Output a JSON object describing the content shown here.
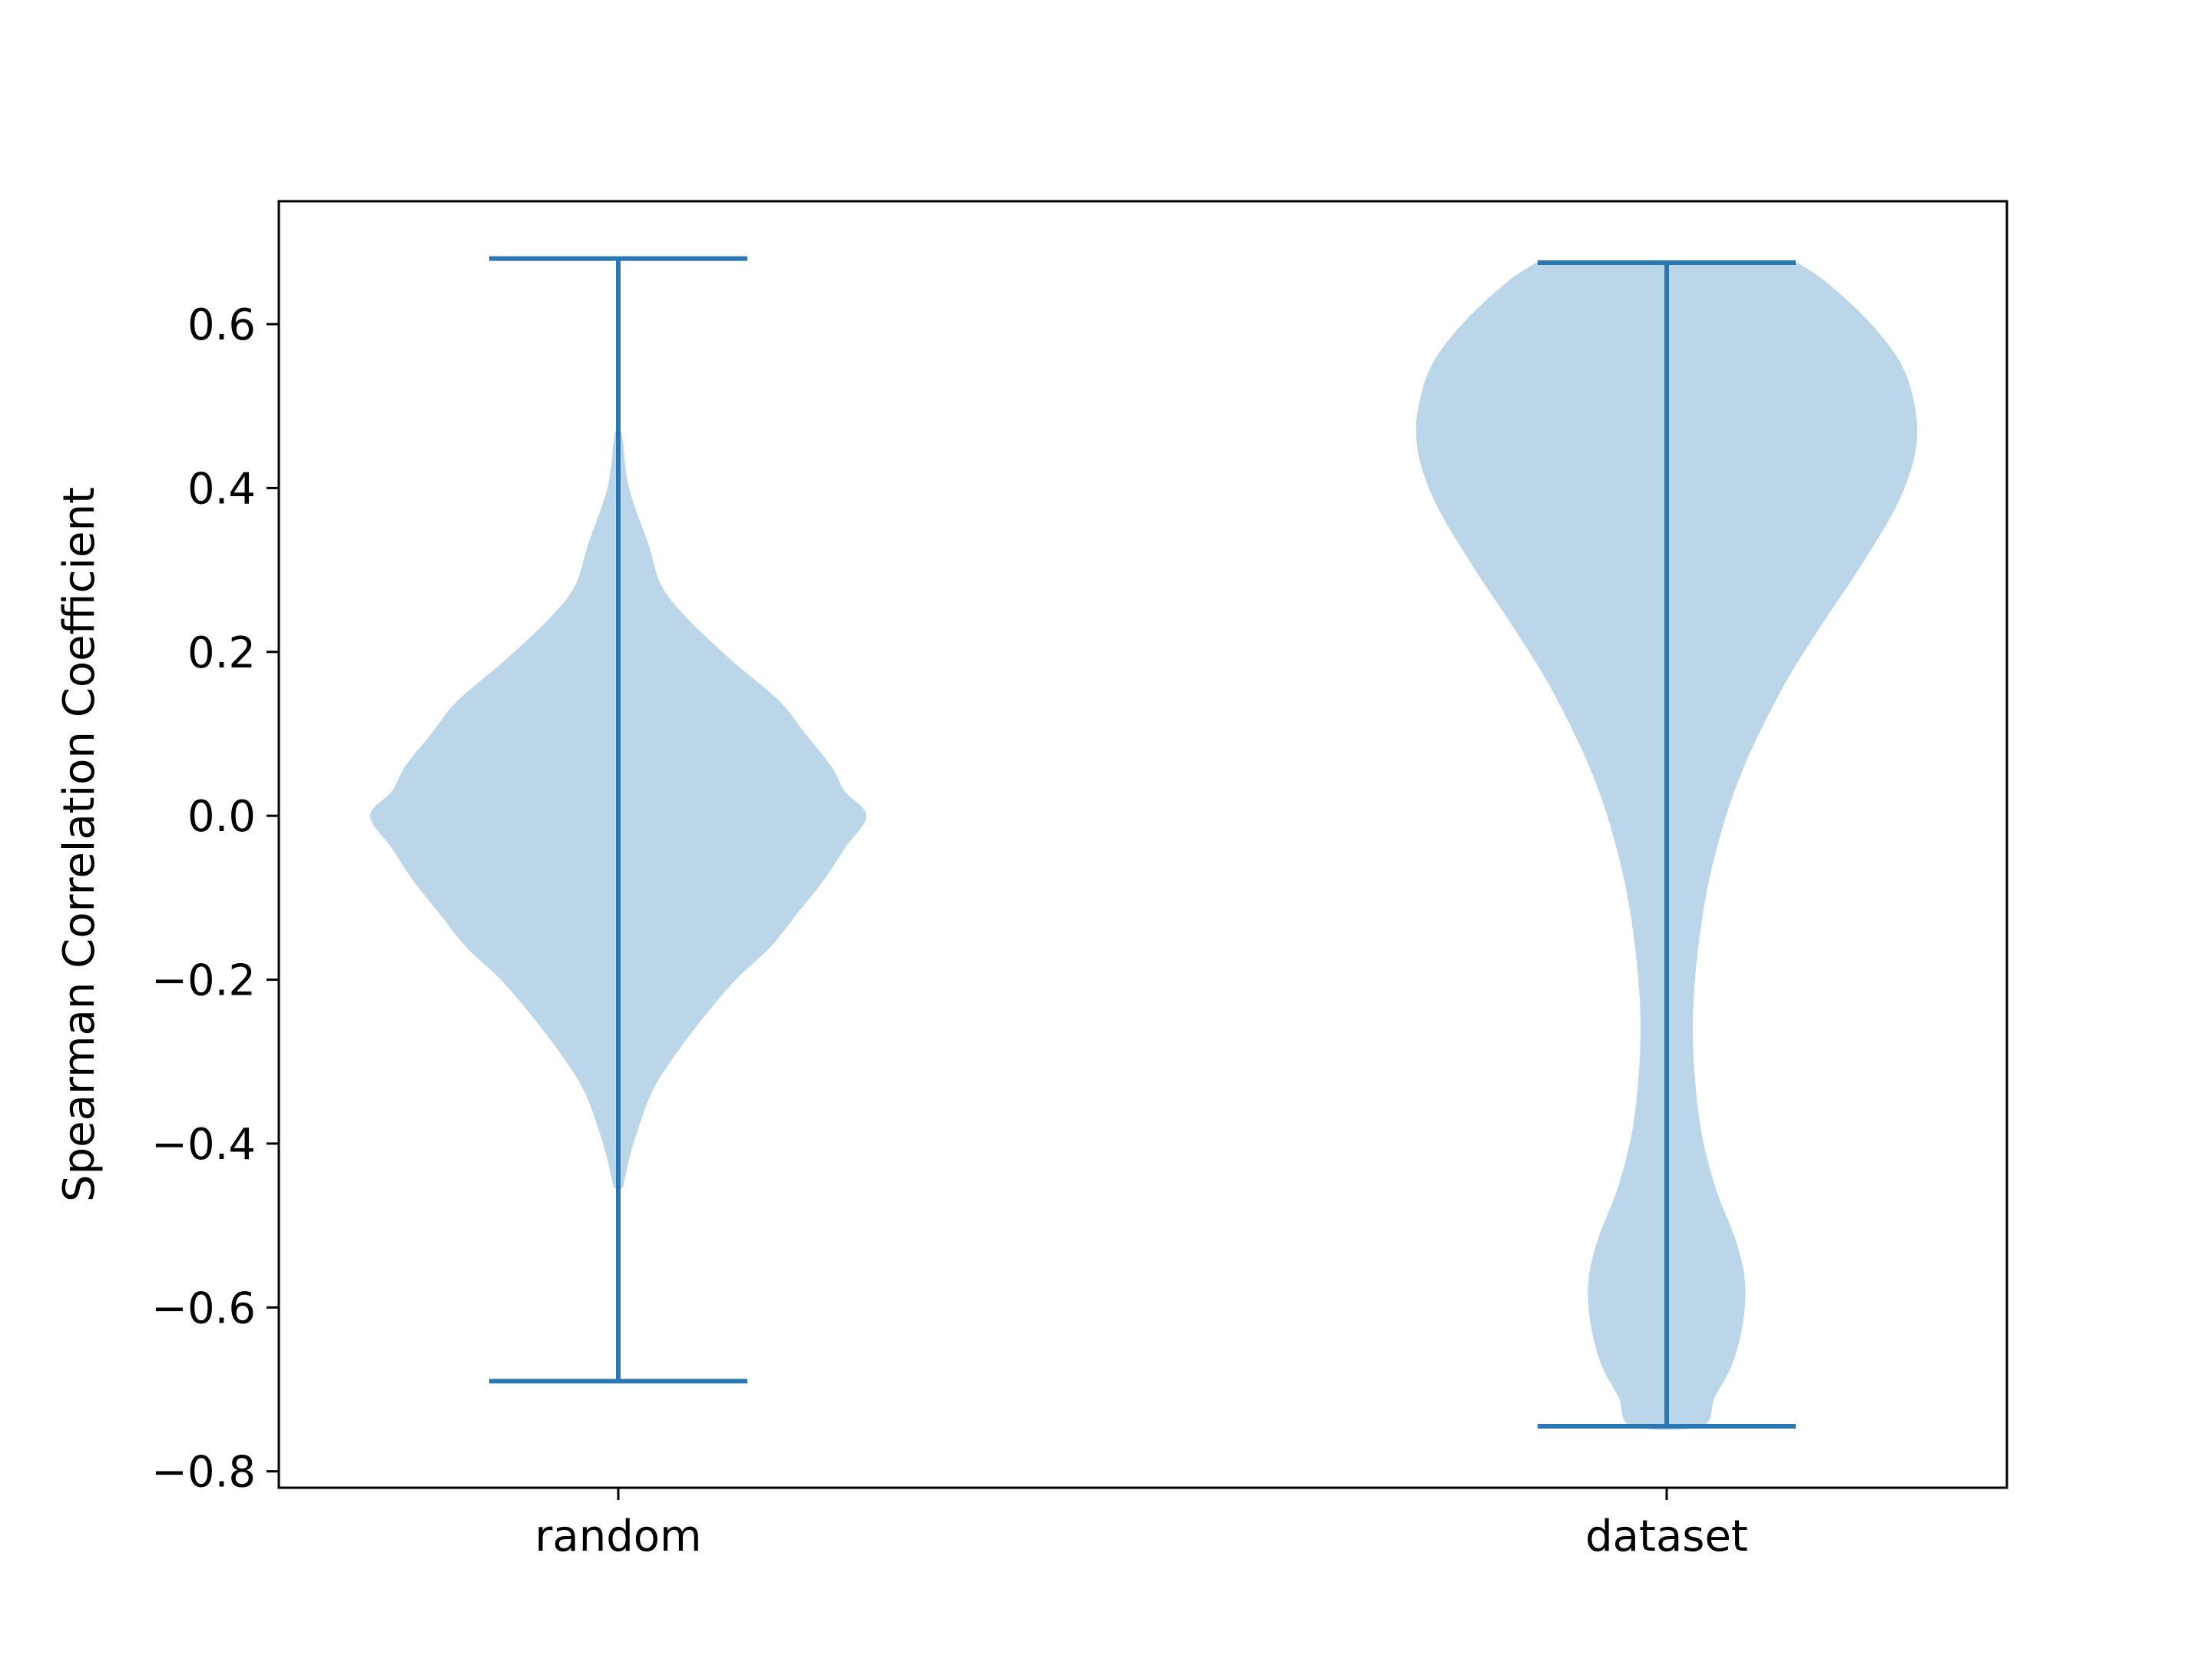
{
  "chart_data": {
    "type": "violin",
    "title": "",
    "xlabel": "",
    "ylabel": "Spearman Correlation Coefficient",
    "ylim": [
      -0.82,
      0.75
    ],
    "yticks": [
      -0.8,
      -0.6,
      -0.4,
      -0.2,
      0.0,
      0.2,
      0.4,
      0.6
    ],
    "ytick_labels": [
      "−0.8",
      "−0.6",
      "−0.4",
      "−0.2",
      "0.0",
      "0.2",
      "0.4",
      "0.6"
    ],
    "categories": [
      "random",
      "dataset"
    ],
    "colors": {
      "body": "#bad6e8",
      "line": "#2a77b4"
    },
    "grid": false,
    "series": [
      {
        "category": "random",
        "min": -0.69,
        "max": 0.68,
        "density": [
          {
            "y": 0.68,
            "w": 0.0
          },
          {
            "y": 0.5,
            "w": 0.0
          },
          {
            "y": 0.46,
            "w": 0.01
          },
          {
            "y": 0.4,
            "w": 0.025
          },
          {
            "y": 0.33,
            "w": 0.07
          },
          {
            "y": 0.28,
            "w": 0.1
          },
          {
            "y": 0.24,
            "w": 0.16
          },
          {
            "y": 0.19,
            "w": 0.26
          },
          {
            "y": 0.14,
            "w": 0.37
          },
          {
            "y": 0.1,
            "w": 0.43
          },
          {
            "y": 0.06,
            "w": 0.49
          },
          {
            "y": 0.03,
            "w": 0.52
          },
          {
            "y": 0.0,
            "w": 0.57
          },
          {
            "y": -0.04,
            "w": 0.52
          },
          {
            "y": -0.08,
            "w": 0.47
          },
          {
            "y": -0.12,
            "w": 0.41
          },
          {
            "y": -0.16,
            "w": 0.35
          },
          {
            "y": -0.2,
            "w": 0.27
          },
          {
            "y": -0.25,
            "w": 0.19
          },
          {
            "y": -0.3,
            "w": 0.12
          },
          {
            "y": -0.34,
            "w": 0.075
          },
          {
            "y": -0.4,
            "w": 0.035
          },
          {
            "y": -0.45,
            "w": 0.012
          },
          {
            "y": -0.48,
            "w": 0.0
          },
          {
            "y": -0.69,
            "w": 0.0
          }
        ]
      },
      {
        "category": "dataset",
        "min": -0.745,
        "max": 0.675,
        "density": [
          {
            "y": 0.675,
            "w": 0.3
          },
          {
            "y": 0.65,
            "w": 0.37
          },
          {
            "y": 0.6,
            "w": 0.47
          },
          {
            "y": 0.55,
            "w": 0.54
          },
          {
            "y": 0.5,
            "w": 0.57
          },
          {
            "y": 0.46,
            "w": 0.575
          },
          {
            "y": 0.42,
            "w": 0.56
          },
          {
            "y": 0.37,
            "w": 0.52
          },
          {
            "y": 0.3,
            "w": 0.44
          },
          {
            "y": 0.22,
            "w": 0.34
          },
          {
            "y": 0.15,
            "w": 0.26
          },
          {
            "y": 0.05,
            "w": 0.17
          },
          {
            "y": -0.05,
            "w": 0.11
          },
          {
            "y": -0.15,
            "w": 0.075
          },
          {
            "y": -0.26,
            "w": 0.06
          },
          {
            "y": -0.37,
            "w": 0.075
          },
          {
            "y": -0.45,
            "w": 0.11
          },
          {
            "y": -0.52,
            "w": 0.16
          },
          {
            "y": -0.57,
            "w": 0.18
          },
          {
            "y": -0.62,
            "w": 0.175
          },
          {
            "y": -0.67,
            "w": 0.15
          },
          {
            "y": -0.71,
            "w": 0.11
          },
          {
            "y": -0.745,
            "w": 0.08
          }
        ]
      }
    ]
  }
}
